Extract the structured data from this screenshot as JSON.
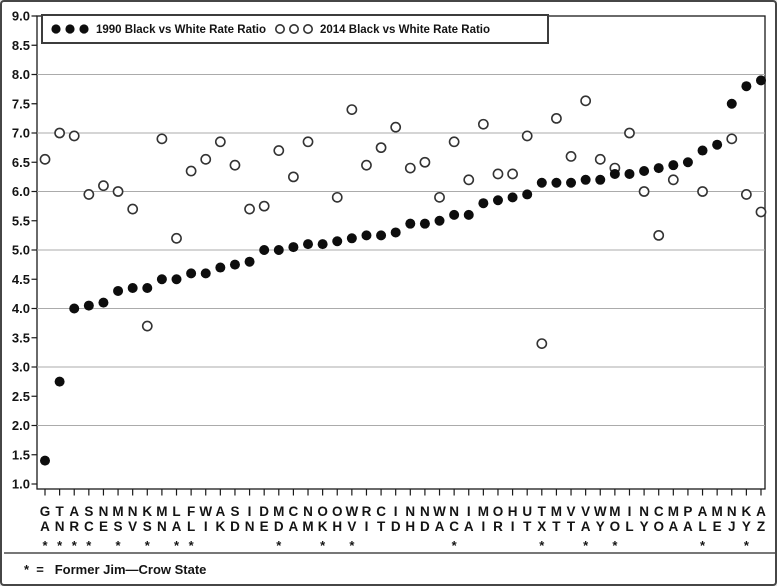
{
  "chart_data": {
    "type": "scatter",
    "title": "",
    "xlabel": "",
    "ylabel": "",
    "ylim": [
      1.0,
      9.0
    ],
    "y_ticks": [
      9.0,
      8.5,
      8.0,
      7.5,
      7.0,
      6.5,
      6.0,
      5.5,
      5.0,
      4.5,
      4.0,
      3.5,
      3.0,
      2.5,
      2.0,
      1.5,
      1.0
    ],
    "gridlines_at": [
      8,
      7,
      6,
      5,
      4,
      3,
      2
    ],
    "legend_position": "top-left-inside",
    "categories": [
      "GA",
      "TN",
      "AR",
      "SC",
      "NE",
      "MS",
      "NV",
      "KS",
      "MN",
      "LA",
      "FL",
      "WI",
      "AK",
      "SD",
      "IN",
      "DE",
      "MD",
      "CA",
      "NM",
      "OK",
      "OH",
      "WV",
      "RI",
      "CT",
      "ID",
      "NH",
      "ND",
      "WA",
      "NC",
      "IA",
      "MI",
      "OR",
      "HI",
      "UT",
      "TX",
      "MT",
      "VT",
      "VA",
      "WY",
      "MO",
      "IL",
      "NY",
      "CO",
      "MA",
      "PA",
      "AL",
      "ME",
      "NJ",
      "KY",
      "AZ"
    ],
    "starred_states": [
      "GA",
      "TN",
      "AR",
      "SC",
      "MS",
      "KS",
      "LA",
      "FL",
      "MD",
      "OK",
      "WV",
      "NC",
      "TX",
      "VA",
      "MO",
      "AL",
      "KY"
    ],
    "series": [
      {
        "name": "1990 Black vs White Rate Ratio",
        "marker": "filled-circle",
        "color": "#0d0d0d",
        "values": [
          1.4,
          2.75,
          4.0,
          4.05,
          4.1,
          4.3,
          4.35,
          4.35,
          4.5,
          4.5,
          4.6,
          4.6,
          4.7,
          4.75,
          4.8,
          5.0,
          5.0,
          5.05,
          5.1,
          5.1,
          5.15,
          5.2,
          5.25,
          5.25,
          5.3,
          5.45,
          5.45,
          5.5,
          5.6,
          5.6,
          5.8,
          5.85,
          5.9,
          5.95,
          6.15,
          6.15,
          6.15,
          6.2,
          6.2,
          6.3,
          6.3,
          6.35,
          6.4,
          6.45,
          6.5,
          6.7,
          6.8,
          7.5,
          7.8,
          7.9
        ]
      },
      {
        "name": "2014 Black vs White Rate Ratio",
        "marker": "open-circle",
        "color": "#333333",
        "values": [
          6.55,
          7.0,
          6.95,
          5.95,
          6.1,
          6.0,
          5.7,
          3.7,
          6.9,
          5.2,
          6.35,
          6.55,
          6.85,
          6.45,
          5.7,
          5.75,
          6.7,
          6.25,
          6.85,
          null,
          5.9,
          7.4,
          6.45,
          6.75,
          7.1,
          6.4,
          6.5,
          5.9,
          6.85,
          6.2,
          7.15,
          6.3,
          6.3,
          6.95,
          3.4,
          7.25,
          6.6,
          7.55,
          6.55,
          6.4,
          7.0,
          6.0,
          5.25,
          6.2,
          null,
          6.0,
          null,
          6.9,
          5.95,
          5.65
        ]
      }
    ],
    "footnote": "*  =   Former Jim—Crow State"
  }
}
